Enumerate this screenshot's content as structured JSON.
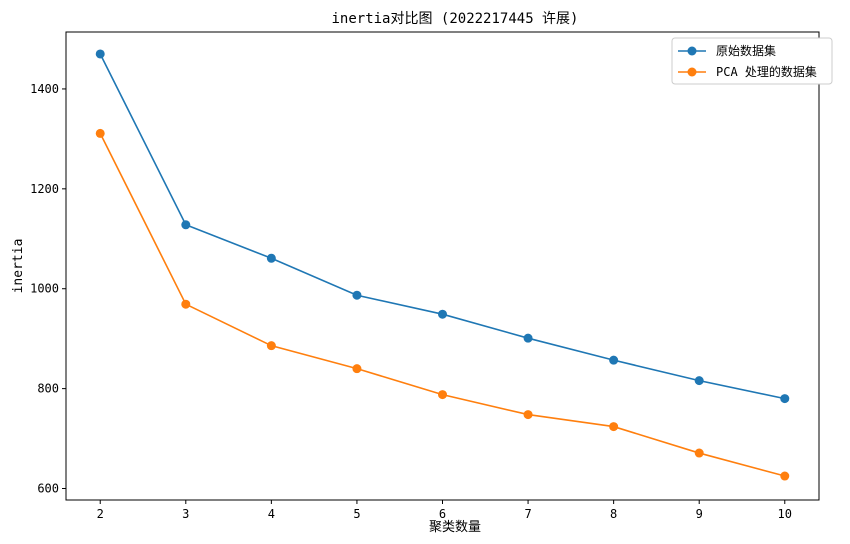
{
  "chart_data": {
    "type": "line",
    "title": "inertia对比图 (2022217445 许展)",
    "xlabel": "聚类数量",
    "ylabel": "inertia",
    "x": [
      2,
      3,
      4,
      5,
      6,
      7,
      8,
      9,
      10
    ],
    "xlim": [
      1.6,
      10.4
    ],
    "ylim": [
      577,
      1514
    ],
    "yticks": [
      600,
      800,
      1000,
      1200,
      1400
    ],
    "grid": false,
    "legend_position": "top-right",
    "series": [
      {
        "name": "原始数据集",
        "color": "#1f77b4",
        "values": [
          1470,
          1128,
          1061,
          987,
          949,
          901,
          857,
          816,
          780
        ]
      },
      {
        "name": "PCA 处理的数据集",
        "color": "#ff7f0e",
        "values": [
          1311,
          969,
          886,
          840,
          788,
          748,
          724,
          671,
          625
        ]
      }
    ]
  }
}
